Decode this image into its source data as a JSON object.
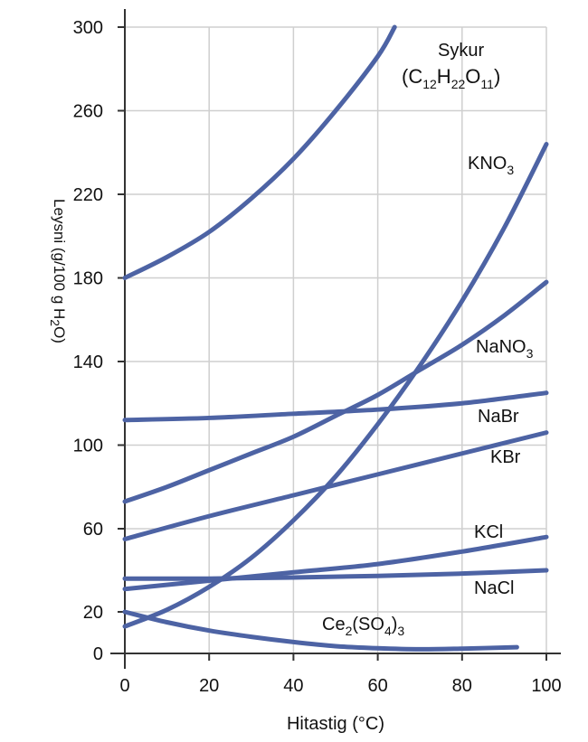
{
  "chart_data": {
    "type": "line",
    "xlabel": "Hitastig (°C)",
    "ylabel": "Leysni (g/100 g H₂O)",
    "ylabel_parts": {
      "pre": "Leysni (g/100 g H",
      "sub": "2",
      "post": "O)"
    },
    "xlim": [
      0,
      100
    ],
    "ylim": [
      0,
      300
    ],
    "x_ticks": [
      0,
      20,
      40,
      60,
      80,
      100
    ],
    "y_ticks": [
      0,
      20,
      60,
      100,
      140,
      180,
      220,
      260,
      300
    ],
    "grid": true,
    "color": "#4d63a4",
    "series": [
      {
        "name": "Sykur (C12H22O11)",
        "label_line1": "Sykur",
        "label_parts": [
          [
            "(C",
            false
          ],
          [
            "12",
            true
          ],
          [
            "H",
            false
          ],
          [
            "22",
            true
          ],
          [
            "O",
            false
          ],
          [
            "11",
            true
          ],
          [
            ")",
            false
          ]
        ],
        "x": [
          0,
          10,
          20,
          30,
          40,
          50,
          60,
          64
        ],
        "y": [
          180,
          190,
          202,
          218,
          237,
          260,
          286,
          300
        ]
      },
      {
        "name": "KNO3",
        "label_parts": [
          [
            "KNO",
            false
          ],
          [
            "3",
            true
          ]
        ],
        "x": [
          0,
          10,
          20,
          30,
          40,
          50,
          60,
          70,
          80,
          90,
          100
        ],
        "y": [
          13,
          21,
          32,
          46,
          64,
          85,
          110,
          138,
          169,
          204,
          244
        ]
      },
      {
        "name": "NaNO3",
        "label_parts": [
          [
            "NaNO",
            false
          ],
          [
            "3",
            true
          ]
        ],
        "x": [
          0,
          10,
          20,
          30,
          40,
          50,
          60,
          70,
          80,
          90,
          100
        ],
        "y": [
          73,
          80,
          88,
          96,
          104,
          114,
          124,
          136,
          148,
          162,
          178
        ]
      },
      {
        "name": "NaBr",
        "label_parts": [
          [
            "NaBr",
            false
          ]
        ],
        "x": [
          0,
          20,
          40,
          60,
          80,
          100
        ],
        "y": [
          112,
          113,
          115,
          117,
          120,
          125
        ]
      },
      {
        "name": "KBr",
        "label_parts": [
          [
            "KBr",
            false
          ]
        ],
        "x": [
          0,
          20,
          40,
          60,
          80,
          100
        ],
        "y": [
          55,
          66,
          76,
          86,
          96,
          106
        ]
      },
      {
        "name": "KCl",
        "label_parts": [
          [
            "KCl",
            false
          ]
        ],
        "x": [
          0,
          20,
          40,
          60,
          80,
          100
        ],
        "y": [
          31,
          35,
          39,
          43,
          49,
          56
        ]
      },
      {
        "name": "NaCl",
        "label_parts": [
          [
            "NaCl",
            false
          ]
        ],
        "x": [
          0,
          20,
          40,
          60,
          80,
          100
        ],
        "y": [
          36,
          36,
          36.5,
          37.3,
          38.4,
          40
        ]
      },
      {
        "name": "Ce2(SO4)3",
        "label_parts": [
          [
            "Ce",
            false
          ],
          [
            "2",
            true
          ],
          [
            "(SO",
            false
          ],
          [
            "4",
            true
          ],
          [
            ")",
            false
          ],
          [
            "3",
            true
          ]
        ],
        "x": [
          0,
          10,
          20,
          30,
          40,
          50,
          60,
          70,
          80,
          93
        ],
        "y": [
          20,
          15,
          11,
          8,
          5.5,
          3.5,
          2.5,
          2,
          2.3,
          3
        ]
      }
    ]
  }
}
